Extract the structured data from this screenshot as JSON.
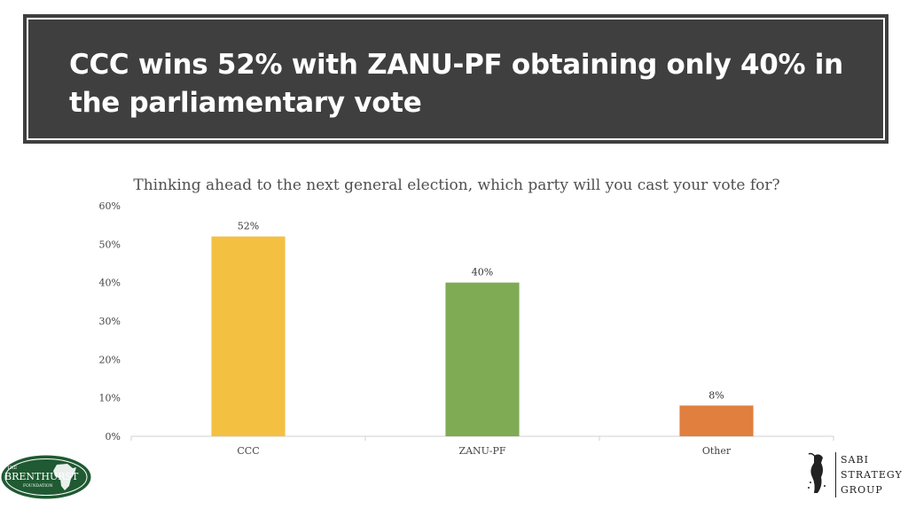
{
  "header": {
    "title": "CCC wins 52% with ZANU-PF obtaining only 40% in the parliamentary vote"
  },
  "chart_data": {
    "type": "bar",
    "title": "Thinking ahead to the next general election, which party will you cast your vote for?",
    "categories": [
      "CCC",
      "ZANU-PF",
      "Other"
    ],
    "values": [
      52,
      40,
      8
    ],
    "value_labels": [
      "52%",
      "40%",
      "8%"
    ],
    "colors": [
      "#F4C042",
      "#7EAB54",
      "#E07F3E"
    ],
    "ylim": [
      0,
      60
    ],
    "yticks": [
      0,
      10,
      20,
      30,
      40,
      50,
      60
    ],
    "ytick_labels": [
      "0%",
      "10%",
      "20%",
      "30%",
      "40%",
      "50%",
      "60%"
    ],
    "xlabel": "",
    "ylabel": "",
    "grid": false,
    "legend": "none"
  },
  "logos": {
    "brenthurst": {
      "prefix": "THE",
      "name": "BRENTHURST",
      "suffix": "FOUNDATION",
      "color": "#1F5A32"
    },
    "sabi": {
      "lines": [
        "SABI",
        "STRATEGY",
        "GROUP"
      ]
    }
  }
}
